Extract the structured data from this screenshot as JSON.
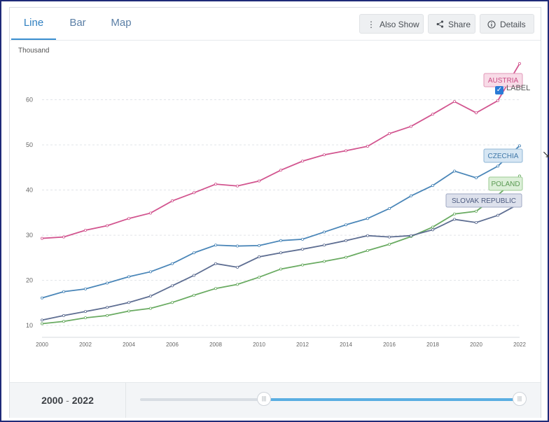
{
  "tabs": [
    {
      "label": "Line",
      "active": true
    },
    {
      "label": "Bar",
      "active": false
    },
    {
      "label": "Map",
      "active": false
    }
  ],
  "buttons": {
    "also_show": "Also Show",
    "share": "Share",
    "details": "Details"
  },
  "label_toggle": {
    "label": "LABEL",
    "checked": true
  },
  "footer": {
    "range_start": "2000",
    "range_end": "2022",
    "separator": "-"
  },
  "chart_data": {
    "type": "line",
    "ylabel": "Thousand",
    "x": [
      2000,
      2001,
      2002,
      2003,
      2004,
      2005,
      2006,
      2007,
      2008,
      2009,
      2010,
      2011,
      2012,
      2013,
      2014,
      2015,
      2016,
      2017,
      2018,
      2019,
      2020,
      2021,
      2022
    ],
    "xticks": [
      2000,
      2002,
      2004,
      2006,
      2008,
      2010,
      2012,
      2014,
      2016,
      2018,
      2020,
      2022
    ],
    "yticks": [
      10,
      20,
      30,
      40,
      50,
      60
    ],
    "ylim": [
      8,
      70
    ],
    "xlim": [
      2000,
      2022
    ],
    "grid": "horizontal dashed",
    "series": [
      {
        "name": "AUSTRIA",
        "color": "#d2558f",
        "values": [
          29.3,
          29.6,
          31.1,
          32.1,
          33.7,
          34.9,
          37.6,
          39.4,
          41.3,
          40.9,
          42.0,
          44.4,
          46.4,
          47.8,
          48.7,
          49.7,
          52.5,
          54.1,
          56.8,
          59.6,
          57.1,
          59.8,
          68.0
        ]
      },
      {
        "name": "CZECHIA",
        "color": "#4a86b8",
        "values": [
          16.1,
          17.5,
          18.1,
          19.4,
          20.8,
          21.9,
          23.7,
          26.1,
          27.8,
          27.6,
          27.7,
          28.8,
          29.1,
          30.7,
          32.3,
          33.7,
          35.9,
          38.7,
          41.0,
          44.2,
          42.7,
          45.3,
          49.8
        ]
      },
      {
        "name": "POLAND",
        "color": "#6aab62",
        "values": [
          10.4,
          10.9,
          11.7,
          12.2,
          13.2,
          13.8,
          15.1,
          16.7,
          18.2,
          19.1,
          20.7,
          22.5,
          23.4,
          24.2,
          25.1,
          26.6,
          28.0,
          29.7,
          31.8,
          34.7,
          35.3,
          38.9,
          43.1
        ]
      },
      {
        "name": "SLOVAK REPUBLIC",
        "color": "#5e6e92",
        "values": [
          11.2,
          12.2,
          13.1,
          14.0,
          15.1,
          16.5,
          18.8,
          21.1,
          23.7,
          22.9,
          25.2,
          26.1,
          26.9,
          27.8,
          28.8,
          29.9,
          29.6,
          29.9,
          31.2,
          33.5,
          32.8,
          34.4,
          37.0
        ]
      }
    ]
  }
}
